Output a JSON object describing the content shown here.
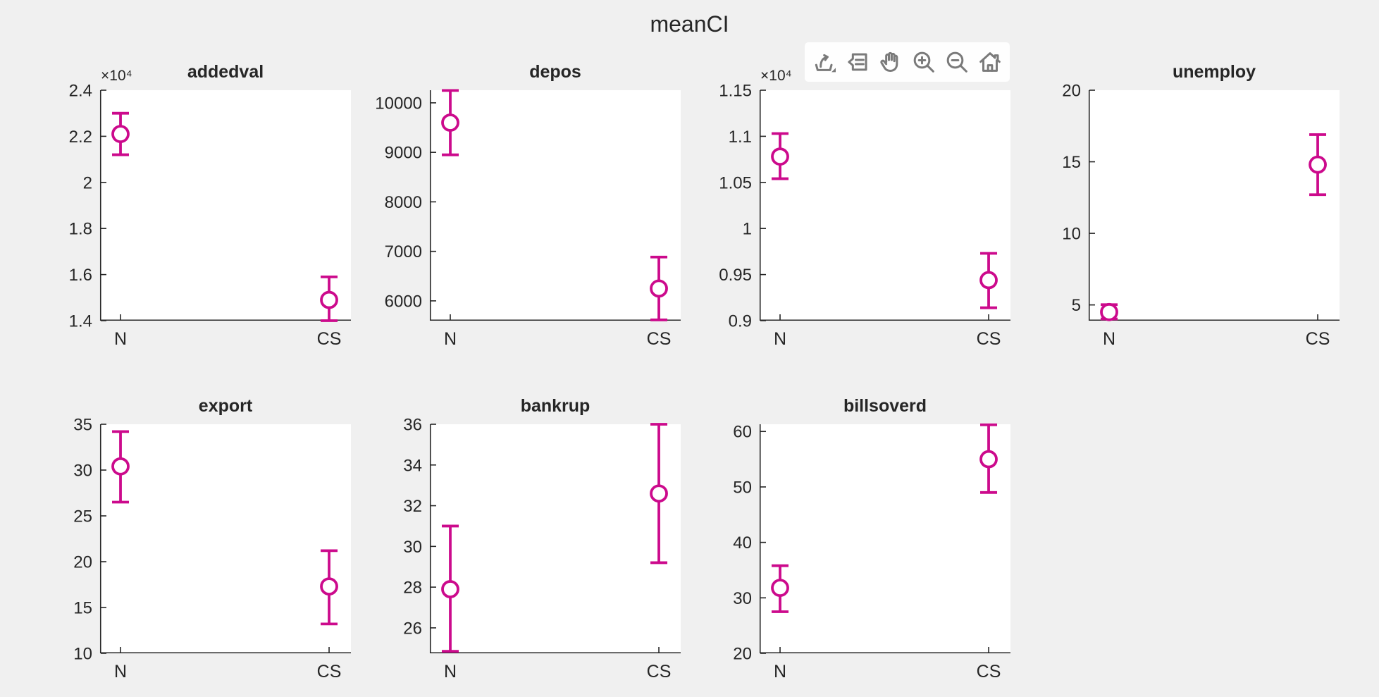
{
  "figure": {
    "background": "#f0f0f0",
    "plot_background": "#ffffff",
    "axis_color": "#262626",
    "errorbar_color": "#cc0a8c",
    "toolbar_icon_color": "#7a7a7a"
  },
  "toolbar": {
    "icons": [
      {
        "name": "export-icon"
      },
      {
        "name": "datatips-icon"
      },
      {
        "name": "pan-icon"
      },
      {
        "name": "zoom-in-icon"
      },
      {
        "name": "zoom-out-icon"
      },
      {
        "name": "restore-view-icon"
      }
    ]
  },
  "chart_data": {
    "type": "errorbar",
    "figure_title": "meanCI",
    "categories": [
      "N",
      "CS"
    ],
    "marker": "open-circle",
    "grid": false,
    "legend": null,
    "subplots": [
      {
        "title": "addedval",
        "y_exponent": "×10⁴",
        "ylim": [
          1.4,
          2.4
        ],
        "yticks": [
          1.4,
          1.6,
          1.8,
          2.0,
          2.2,
          2.4
        ],
        "ytick_labels": [
          "1.4",
          "1.6",
          "1.8",
          "2",
          "2.2",
          "2.4"
        ],
        "means": [
          2.21,
          1.49
        ],
        "ci_low": [
          2.12,
          1.4
        ],
        "ci_high": [
          2.3,
          1.59
        ]
      },
      {
        "title": "depos",
        "y_exponent": null,
        "ylim": [
          5600,
          10255
        ],
        "yticks": [
          6000,
          7000,
          8000,
          9000,
          10000
        ],
        "ytick_labels": [
          "6000",
          "7000",
          "8000",
          "9000",
          "10000"
        ],
        "means": [
          9600,
          6250
        ],
        "ci_low": [
          8950,
          5615
        ],
        "ci_high": [
          10250,
          6885
        ]
      },
      {
        "title": "",
        "y_exponent": "×10⁴",
        "ylim": [
          0.9,
          1.15
        ],
        "yticks": [
          0.9,
          0.95,
          1.0,
          1.05,
          1.1,
          1.15
        ],
        "ytick_labels": [
          "0.9",
          "0.95",
          "1",
          "1.05",
          "1.1",
          "1.15"
        ],
        "means": [
          1.078,
          0.944
        ],
        "ci_low": [
          1.054,
          0.914
        ],
        "ci_high": [
          1.103,
          0.973
        ]
      },
      {
        "title": "unemploy",
        "y_exponent": null,
        "ylim": [
          3.9,
          20
        ],
        "yticks": [
          5,
          10,
          15,
          20
        ],
        "ytick_labels": [
          "5",
          "10",
          "15",
          "20"
        ],
        "means": [
          4.5,
          14.8
        ],
        "ci_low": [
          4.02,
          12.7
        ],
        "ci_high": [
          5.02,
          16.9
        ]
      },
      {
        "title": "export",
        "y_exponent": null,
        "ylim": [
          10,
          35
        ],
        "yticks": [
          10,
          15,
          20,
          25,
          30,
          35
        ],
        "ytick_labels": [
          "10",
          "15",
          "20",
          "25",
          "30",
          "35"
        ],
        "means": [
          30.4,
          17.3
        ],
        "ci_low": [
          26.5,
          13.2
        ],
        "ci_high": [
          34.2,
          21.2
        ]
      },
      {
        "title": "bankrup",
        "y_exponent": null,
        "ylim": [
          24.75,
          36
        ],
        "yticks": [
          26,
          28,
          30,
          32,
          34,
          36
        ],
        "ytick_labels": [
          "26",
          "28",
          "30",
          "32",
          "34",
          "36"
        ],
        "means": [
          27.9,
          32.6
        ],
        "ci_low": [
          24.85,
          29.2
        ],
        "ci_high": [
          31.0,
          36.0
        ]
      },
      {
        "title": "billsoverd",
        "y_exponent": null,
        "ylim": [
          20,
          61.3
        ],
        "yticks": [
          20,
          30,
          40,
          50,
          60
        ],
        "ytick_labels": [
          "20",
          "30",
          "40",
          "50",
          "60"
        ],
        "means": [
          31.8,
          55.0
        ],
        "ci_low": [
          27.5,
          49.0
        ],
        "ci_high": [
          35.8,
          61.2
        ]
      }
    ]
  }
}
